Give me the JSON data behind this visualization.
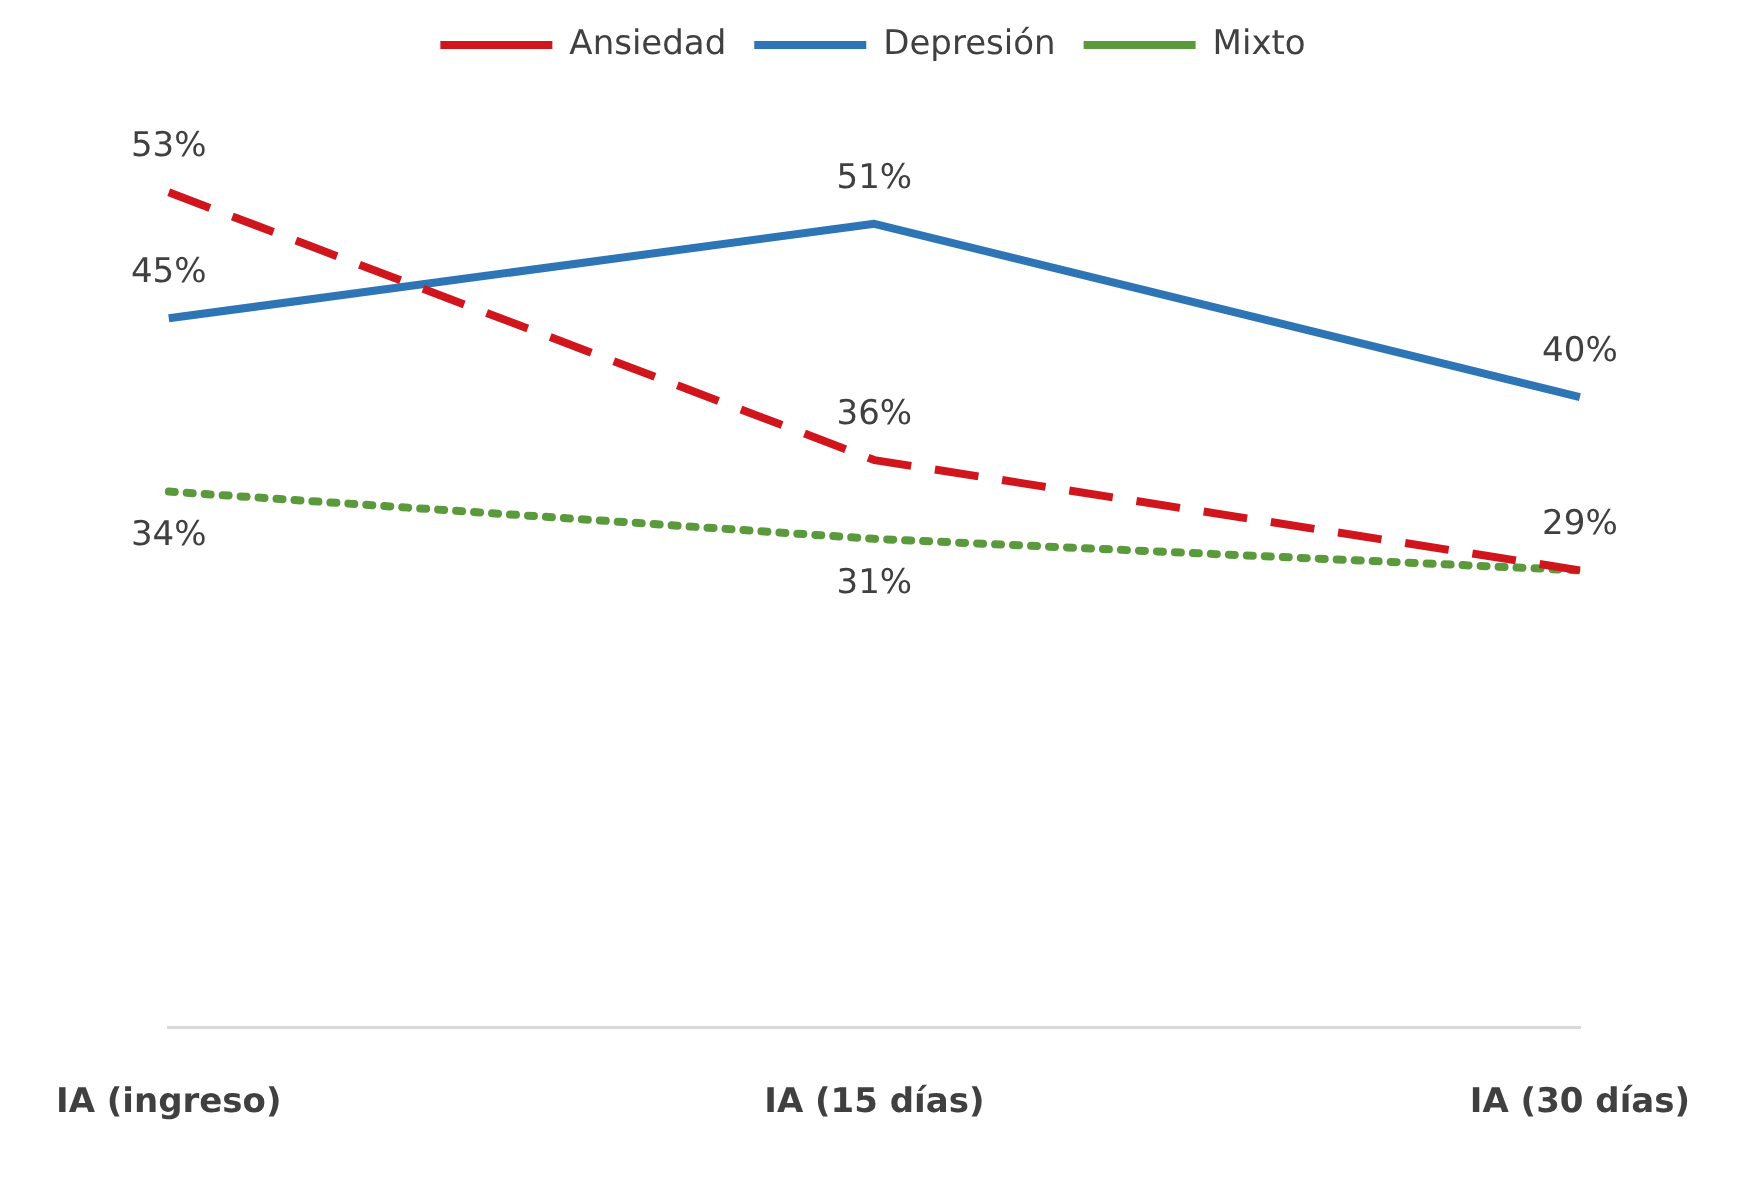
{
  "chart_data": {
    "type": "line",
    "categories": [
      "IA (ingreso)",
      "IA (15 días)",
      "IA (30 días)"
    ],
    "series": [
      {
        "name": "Ansiedad",
        "color": "#d0161c",
        "line_style": "dashed",
        "values": [
          53,
          36,
          29
        ],
        "value_labels": [
          "53%",
          "36%",
          "29%"
        ]
      },
      {
        "name": "Depresión",
        "color": "#2e75b6",
        "line_style": "solid",
        "values": [
          45,
          51,
          40
        ],
        "value_labels": [
          "45%",
          "51%",
          "40%"
        ]
      },
      {
        "name": "Mixto",
        "color": "#5b9a3c",
        "line_style": "dotted",
        "values": [
          34,
          31,
          29
        ],
        "value_labels": [
          "34%",
          "31%",
          null
        ]
      }
    ],
    "grid": false,
    "legend": "top",
    "marker": "none",
    "tick_labels": "x"
  }
}
